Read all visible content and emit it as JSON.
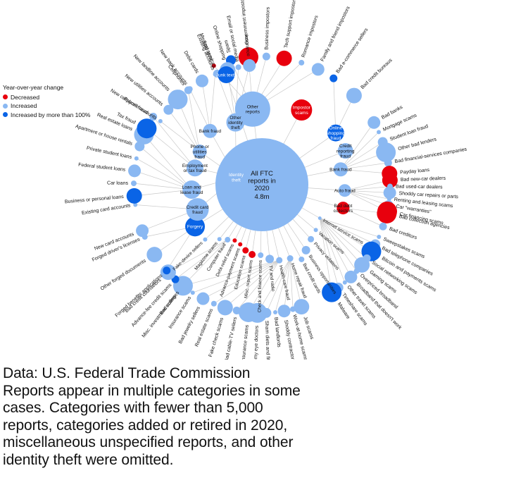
{
  "legend": {
    "title": "Year-over-year change",
    "items": [
      {
        "label": "Decreased",
        "color": "#e8000d"
      },
      {
        "label": "Increased",
        "color": "#8ab8f2"
      },
      {
        "label": "Increased by more than 100%",
        "color": "#0a64e6"
      }
    ]
  },
  "footnote": {
    "lines": [
      "Data: U.S. Federal Trade Commission",
      "Reports appear in multiple categories in some",
      "cases. Categories with fewer than 5,000",
      "reports, categories added or retired in 2020,",
      "miscellaneous unspecified reports, and other",
      "identity theft were omitted."
    ]
  },
  "chart_data": {
    "type": "bubble-network",
    "root": {
      "label": "All FTC reports in 2020",
      "value": "4.8m"
    },
    "colors": {
      "decreased": "#e8000d",
      "increased": "#8ab8f2",
      "increased_more_than_100": "#0a64e6"
    },
    "groups": [
      {
        "label": "Other reports",
        "change": "increased",
        "leaves": [
          {
            "label": "Junk calls",
            "change": "decreased"
          },
          {
            "label": "Spam",
            "change": "increased_more_than_100"
          },
          {
            "label": "Government impostors",
            "change": "decreased"
          },
          {
            "label": "Business impostors",
            "change": "increased"
          },
          {
            "label": "Tech support impostors",
            "change": "decreased"
          },
          {
            "label": "Romance impostors",
            "change": "increased"
          },
          {
            "label": "Family and friend impostors",
            "change": "increased"
          }
        ]
      },
      {
        "label": "Impostor scams",
        "change": "decreased",
        "leaves": []
      },
      {
        "label": "Online shopping fraud",
        "change": "increased_more_than_100",
        "leaves": [
          {
            "label": "Bad e-commerce sellers",
            "change": "increased_more_than_100"
          },
          {
            "label": "Bad credit bureaus",
            "change": "increased"
          }
        ]
      },
      {
        "label": "Credit reporting fraud",
        "change": "increased",
        "leaves": []
      },
      {
        "label": "Bank fraud",
        "change": "increased",
        "leaves": [
          {
            "label": "Bad banks",
            "change": "increased"
          },
          {
            "label": "Mortgage scams",
            "change": "increased"
          },
          {
            "label": "Student loan fraud",
            "change": "increased"
          },
          {
            "label": "Other bad lenders",
            "change": "increased"
          },
          {
            "label": "Bad financial-services companies",
            "change": "increased"
          },
          {
            "label": "Payday loans",
            "change": "decreased"
          }
        ]
      },
      {
        "label": "Auto fraud",
        "change": "increased",
        "leaves": [
          {
            "label": "Bad new-car dealers",
            "change": "decreased"
          },
          {
            "label": "Bad used-car dealers",
            "change": "increased"
          },
          {
            "label": "Shoddy car repairs or parts",
            "change": "increased"
          },
          {
            "label": "Renting and leasing scams",
            "change": "increased"
          },
          {
            "label": "Car \"warranties\"",
            "change": "increased"
          },
          {
            "label": "Car financing scams",
            "change": "decreased"
          }
        ]
      },
      {
        "label": "Bad debt collectors",
        "change": "decreased",
        "leaves": [
          {
            "label": "Bad collection agencies",
            "change": "decreased"
          },
          {
            "label": "Bad creditors",
            "change": "increased"
          }
        ]
      },
      {
        "label": "Internet service scams",
        "change": "increased",
        "leaves": [
          {
            "label": "Sweepstakes scams",
            "change": "increased"
          },
          {
            "label": "Bad telephone companies",
            "change": "increased"
          },
          {
            "label": "Bitcoin and payments scams",
            "change": "increased_more_than_100"
          },
          {
            "label": "Social networking scams",
            "change": "increased"
          },
          {
            "label": "Gaming scams",
            "change": "increased"
          },
          {
            "label": "Overpriced broadband",
            "change": "increased"
          },
          {
            "label": "Broadband that doesn't work",
            "change": "increased"
          },
          {
            "label": "Other travel scams",
            "change": "increased"
          },
          {
            "label": "Timeshare scams",
            "change": "increased"
          },
          {
            "label": "Malware",
            "change": "increased_more_than_100"
          }
        ]
      },
      {
        "label": "Vacation scams",
        "change": "increased",
        "leaves": []
      },
      {
        "label": "Privacy violations",
        "change": "increased",
        "leaves": []
      },
      {
        "label": "Business opportunities",
        "change": "increased",
        "leaves": []
      },
      {
        "label": "Bad credit cards",
        "change": "increased",
        "leaves": []
      },
      {
        "label": "Home repair fraud",
        "change": "increased",
        "leaves": [
          {
            "label": "Job scams",
            "change": "increased"
          },
          {
            "label": "Work-at-home scams",
            "change": "increased"
          },
          {
            "label": "Shoddy contractors",
            "change": "increased"
          },
          {
            "label": "Bad landlords",
            "change": "increased"
          },
          {
            "label": "Sham diets and fitness",
            "change": "increased"
          },
          {
            "label": "Scammy eye doctors",
            "change": "increased"
          }
        ]
      },
      {
        "label": "Health-care fraud",
        "change": "increased",
        "leaves": [
          {
            "label": "Insurance scams",
            "change": "increased"
          },
          {
            "label": "Bad cable-TV sellers",
            "change": "increased"
          },
          {
            "label": "Fake check scams",
            "change": "increased"
          },
          {
            "label": "Real estate scams",
            "change": "increased"
          },
          {
            "label": "Bad jewelry sellers",
            "change": "increased"
          },
          {
            "label": "Insurance scams",
            "change": "increased"
          },
          {
            "label": "Bad colleges",
            "change": "increased"
          }
        ]
      },
      {
        "label": "TV and radio",
        "change": "increased",
        "leaves": []
      },
      {
        "label": "Check and finance scams",
        "change": "increased",
        "leaves": []
      },
      {
        "label": "Misc. report scams",
        "change": "decreased",
        "leaves": []
      },
      {
        "label": "Education scams",
        "change": "decreased",
        "leaves": []
      },
      {
        "label": "Advance-payment scams",
        "change": "decreased",
        "leaves": []
      },
      {
        "label": "Debt-relief scams",
        "change": "decreased",
        "leaves": []
      },
      {
        "label": "Computer fraud",
        "change": "increased",
        "leaves": [
          {
            "label": "Misc. investment scams",
            "change": "increased"
          },
          {
            "label": "Advance-fee credit scams",
            "change": "increased_more_than_100"
          },
          {
            "label": "Bad credit counselors",
            "change": "increased"
          }
        ]
      },
      {
        "label": "Magazine scams",
        "change": "increased",
        "leaves": []
      },
      {
        "label": "Fake-device sellers",
        "change": "increased",
        "leaves": []
      },
      {
        "label": "Forgery",
        "change": "increased_more_than_100",
        "leaves": [
          {
            "label": "Forged benefits applications",
            "change": "increased_more_than_100"
          },
          {
            "label": "Other forged documents",
            "change": "increased"
          },
          {
            "label": "Forged driver's licenses",
            "change": "increased"
          }
        ]
      },
      {
        "label": "Identity theft",
        "change": "increased_more_than_100",
        "leaves": []
      },
      {
        "label": "Credit card fraud",
        "change": "increased",
        "leaves": [
          {
            "label": "New card accounts",
            "change": "increased"
          },
          {
            "label": "Existing card accounts",
            "change": "increased"
          }
        ]
      },
      {
        "label": "Loan and lease fraud",
        "change": "increased",
        "leaves": [
          {
            "label": "Business or personal loans",
            "change": "increased_more_than_100"
          },
          {
            "label": "Car loans",
            "change": "increased"
          },
          {
            "label": "Federal student loans",
            "change": "increased"
          },
          {
            "label": "Private student loans",
            "change": "increased"
          },
          {
            "label": "Apartment or house rentals",
            "change": "increased"
          },
          {
            "label": "Real estate loans",
            "change": "increased"
          }
        ]
      },
      {
        "label": "Employment or tax fraud",
        "change": "increased",
        "leaves": [
          {
            "label": "Tax fraud",
            "change": "increased_more_than_100"
          },
          {
            "label": "Payroll fraud",
            "change": "increased"
          }
        ]
      },
      {
        "label": "Phone or utilities fraud",
        "change": "increased",
        "leaves": [
          {
            "label": "New cellphone accounts",
            "change": "increased"
          },
          {
            "label": "New utilities accounts",
            "change": "increased"
          },
          {
            "label": "New landline accounts",
            "change": "increased"
          },
          {
            "label": "Cellphones",
            "change": "increased"
          }
        ]
      },
      {
        "label": "Bank fraud",
        "change": "increased",
        "leaves": [
          {
            "label": "New bank accounts",
            "change": "increased"
          },
          {
            "label": "Debit cards",
            "change": "increased"
          },
          {
            "label": "Existing accounts",
            "change": "increased"
          }
        ]
      },
      {
        "label": "Other identity theft",
        "change": "increased",
        "leaves": [
          {
            "label": "Medical services",
            "change": "increased"
          },
          {
            "label": "Online shopping",
            "change": "increased"
          },
          {
            "label": "Email or social media",
            "change": "increased"
          },
          {
            "label": "Insurance",
            "change": "increased"
          }
        ]
      },
      {
        "label": "Junk texts",
        "change": "increased_more_than_100",
        "leaves": []
      }
    ]
  }
}
